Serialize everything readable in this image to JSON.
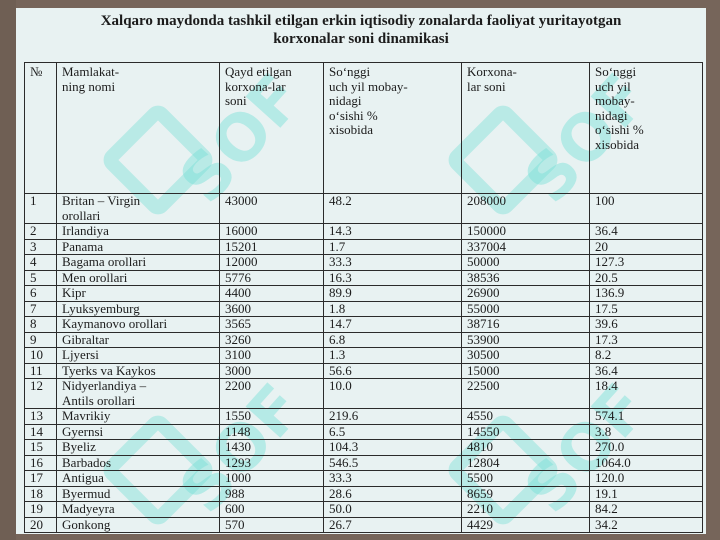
{
  "title": {
    "line1": "Xalqaro maydonda tashkil etilgan erkin iqtisodiy zonalarda faoliyat yuritayotgan",
    "line2": "korxonalar soni dinamikasi"
  },
  "watermark": {
    "text": "SOF",
    "color": "#78e1d7"
  },
  "table": {
    "headers": [
      "№",
      "Mamlakat-\nning nomi",
      "Qayd etilgan\nkorxona-lar\nsoni",
      "So‘nggi\nuch yil mobay-\nnidagi\no‘sishi %\nxisobida",
      "Korxona-\nlar soni",
      "So‘nggi\nuch yil\nmobay-\nnidagi\no‘sishi %\nxisobida"
    ],
    "rows": [
      [
        "1",
        "Britan – Virgin\norollari",
        "43000",
        "48.2",
        "208000",
        "100"
      ],
      [
        "2",
        "Irlandiya",
        "16000",
        "14.3",
        "150000",
        "36.4"
      ],
      [
        "3",
        "Panama",
        "15201",
        "1.7",
        "337004",
        "20"
      ],
      [
        "4",
        "Bagama orollari",
        "12000",
        "33.3",
        "50000",
        "127.3"
      ],
      [
        "5",
        "Men orollari",
        "5776",
        "16.3",
        "38536",
        "20.5"
      ],
      [
        "6",
        "Kipr",
        "4400",
        "89.9",
        "26900",
        "136.9"
      ],
      [
        "7",
        "Lyuksyemburg",
        "3600",
        "1.8",
        "55000",
        "17.5"
      ],
      [
        "8",
        "Kaymanovo orollari",
        "3565",
        "14.7",
        "38716",
        "39.6"
      ],
      [
        "9",
        "Gibraltar",
        "3260",
        "6.8",
        "53900",
        "17.3"
      ],
      [
        "10",
        "Ljyersi",
        "3100",
        "1.3",
        "30500",
        "8.2"
      ],
      [
        "11",
        "Tyerks va Kaykos",
        "3000",
        "56.6",
        "15000",
        "36.4"
      ],
      [
        "12",
        "Nidyerlandiya –\nAntils orollari",
        "2200",
        "10.0",
        "22500",
        "18.4"
      ],
      [
        "13",
        "Mavrikiy",
        "1550",
        "219.6",
        "4550",
        "574.1"
      ],
      [
        "14",
        "Gyernsi",
        "1148",
        "6.5",
        "14550",
        "3.8"
      ],
      [
        "15",
        "Byeliz",
        "1430",
        "104.3",
        "4810",
        "270.0"
      ],
      [
        "16",
        "Barbados",
        "1293",
        "546.5",
        "12804",
        "1064.0"
      ],
      [
        "17",
        "Antigua",
        "1000",
        "33.3",
        "5500",
        "120.0"
      ],
      [
        "18",
        "Byermud",
        "988",
        "28.6",
        "8659",
        "19.1"
      ],
      [
        "19",
        "Madyeyra",
        "600",
        "50.0",
        "2210",
        "84.2"
      ],
      [
        "20",
        "Gonkong",
        "570",
        "26.7",
        "4429",
        "34.2"
      ]
    ]
  }
}
